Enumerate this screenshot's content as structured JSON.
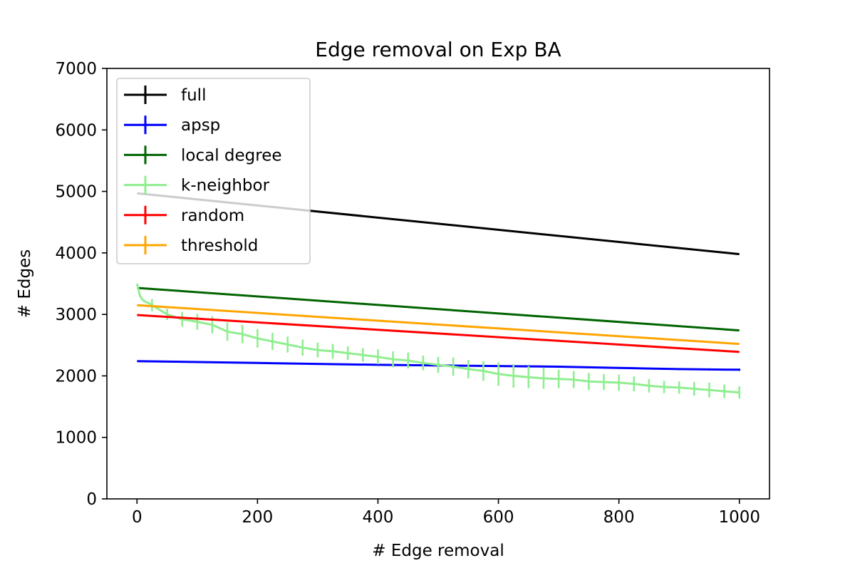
{
  "chart_data": {
    "type": "line",
    "title": "Edge removal on Exp BA",
    "xlabel": "# Edge removal",
    "ylabel": "# Edges",
    "xlim": [
      -50,
      1050
    ],
    "ylim": [
      0,
      7000
    ],
    "xticks": [
      0,
      200,
      400,
      600,
      800,
      1000
    ],
    "yticks": [
      0,
      1000,
      2000,
      3000,
      4000,
      5000,
      6000,
      7000
    ],
    "grid": false,
    "legend_position": "top-left",
    "series": [
      {
        "name": "full",
        "color": "#000000",
        "x": [
          0,
          1000
        ],
        "y": [
          4970,
          3980
        ],
        "error_x": [],
        "error_y": []
      },
      {
        "name": "apsp",
        "color": "#0000ff",
        "x": [
          0,
          200,
          400,
          600,
          700,
          800,
          850,
          900,
          950,
          1000
        ],
        "y": [
          2240,
          2210,
          2180,
          2160,
          2150,
          2130,
          2120,
          2110,
          2105,
          2100
        ],
        "error_x": [
          700,
          750,
          800,
          850,
          900,
          950,
          1000
        ],
        "error_y": [
          10,
          12,
          14,
          15,
          16,
          17,
          18
        ]
      },
      {
        "name": "local degree",
        "color": "#006400",
        "x": [
          0,
          1000
        ],
        "y": [
          3430,
          2740
        ],
        "error_x": [],
        "error_y": []
      },
      {
        "name": "k-neighbor",
        "color": "#90ee90",
        "x": [
          0,
          5,
          10,
          15,
          20,
          25,
          50,
          75,
          100,
          125,
          150,
          175,
          200,
          225,
          250,
          275,
          300,
          325,
          350,
          375,
          400,
          425,
          450,
          475,
          500,
          525,
          550,
          575,
          600,
          625,
          650,
          675,
          700,
          725,
          750,
          775,
          800,
          825,
          850,
          875,
          900,
          925,
          950,
          975,
          1000
        ],
        "y": [
          3500,
          3300,
          3230,
          3200,
          3180,
          3150,
          3000,
          2920,
          2880,
          2830,
          2720,
          2680,
          2610,
          2560,
          2510,
          2460,
          2420,
          2400,
          2370,
          2340,
          2310,
          2270,
          2250,
          2210,
          2180,
          2150,
          2110,
          2080,
          2030,
          2000,
          1980,
          1960,
          1950,
          1940,
          1910,
          1900,
          1890,
          1870,
          1840,
          1820,
          1810,
          1790,
          1770,
          1750,
          1730
        ],
        "error_x": [
          25,
          50,
          75,
          100,
          125,
          150,
          175,
          200,
          225,
          250,
          275,
          300,
          325,
          350,
          375,
          400,
          425,
          450,
          475,
          500,
          525,
          550,
          575,
          600,
          625,
          650,
          675,
          700,
          725,
          750,
          775,
          800,
          825,
          850,
          875,
          900,
          925,
          950,
          975,
          1000
        ],
        "error_y": [
          100,
          90,
          120,
          130,
          140,
          150,
          150,
          150,
          140,
          130,
          130,
          120,
          120,
          110,
          110,
          120,
          130,
          130,
          120,
          130,
          150,
          150,
          160,
          190,
          190,
          180,
          170,
          150,
          140,
          140,
          130,
          130,
          120,
          110,
          100,
          100,
          110,
          120,
          110,
          100
        ]
      },
      {
        "name": "random",
        "color": "#ff0000",
        "x": [
          0,
          1000
        ],
        "y": [
          2990,
          2390
        ],
        "error_x": [],
        "error_y": []
      },
      {
        "name": "threshold",
        "color": "#ffa500",
        "x": [
          0,
          1000
        ],
        "y": [
          3150,
          2520
        ],
        "error_x": [],
        "error_y": []
      }
    ]
  }
}
